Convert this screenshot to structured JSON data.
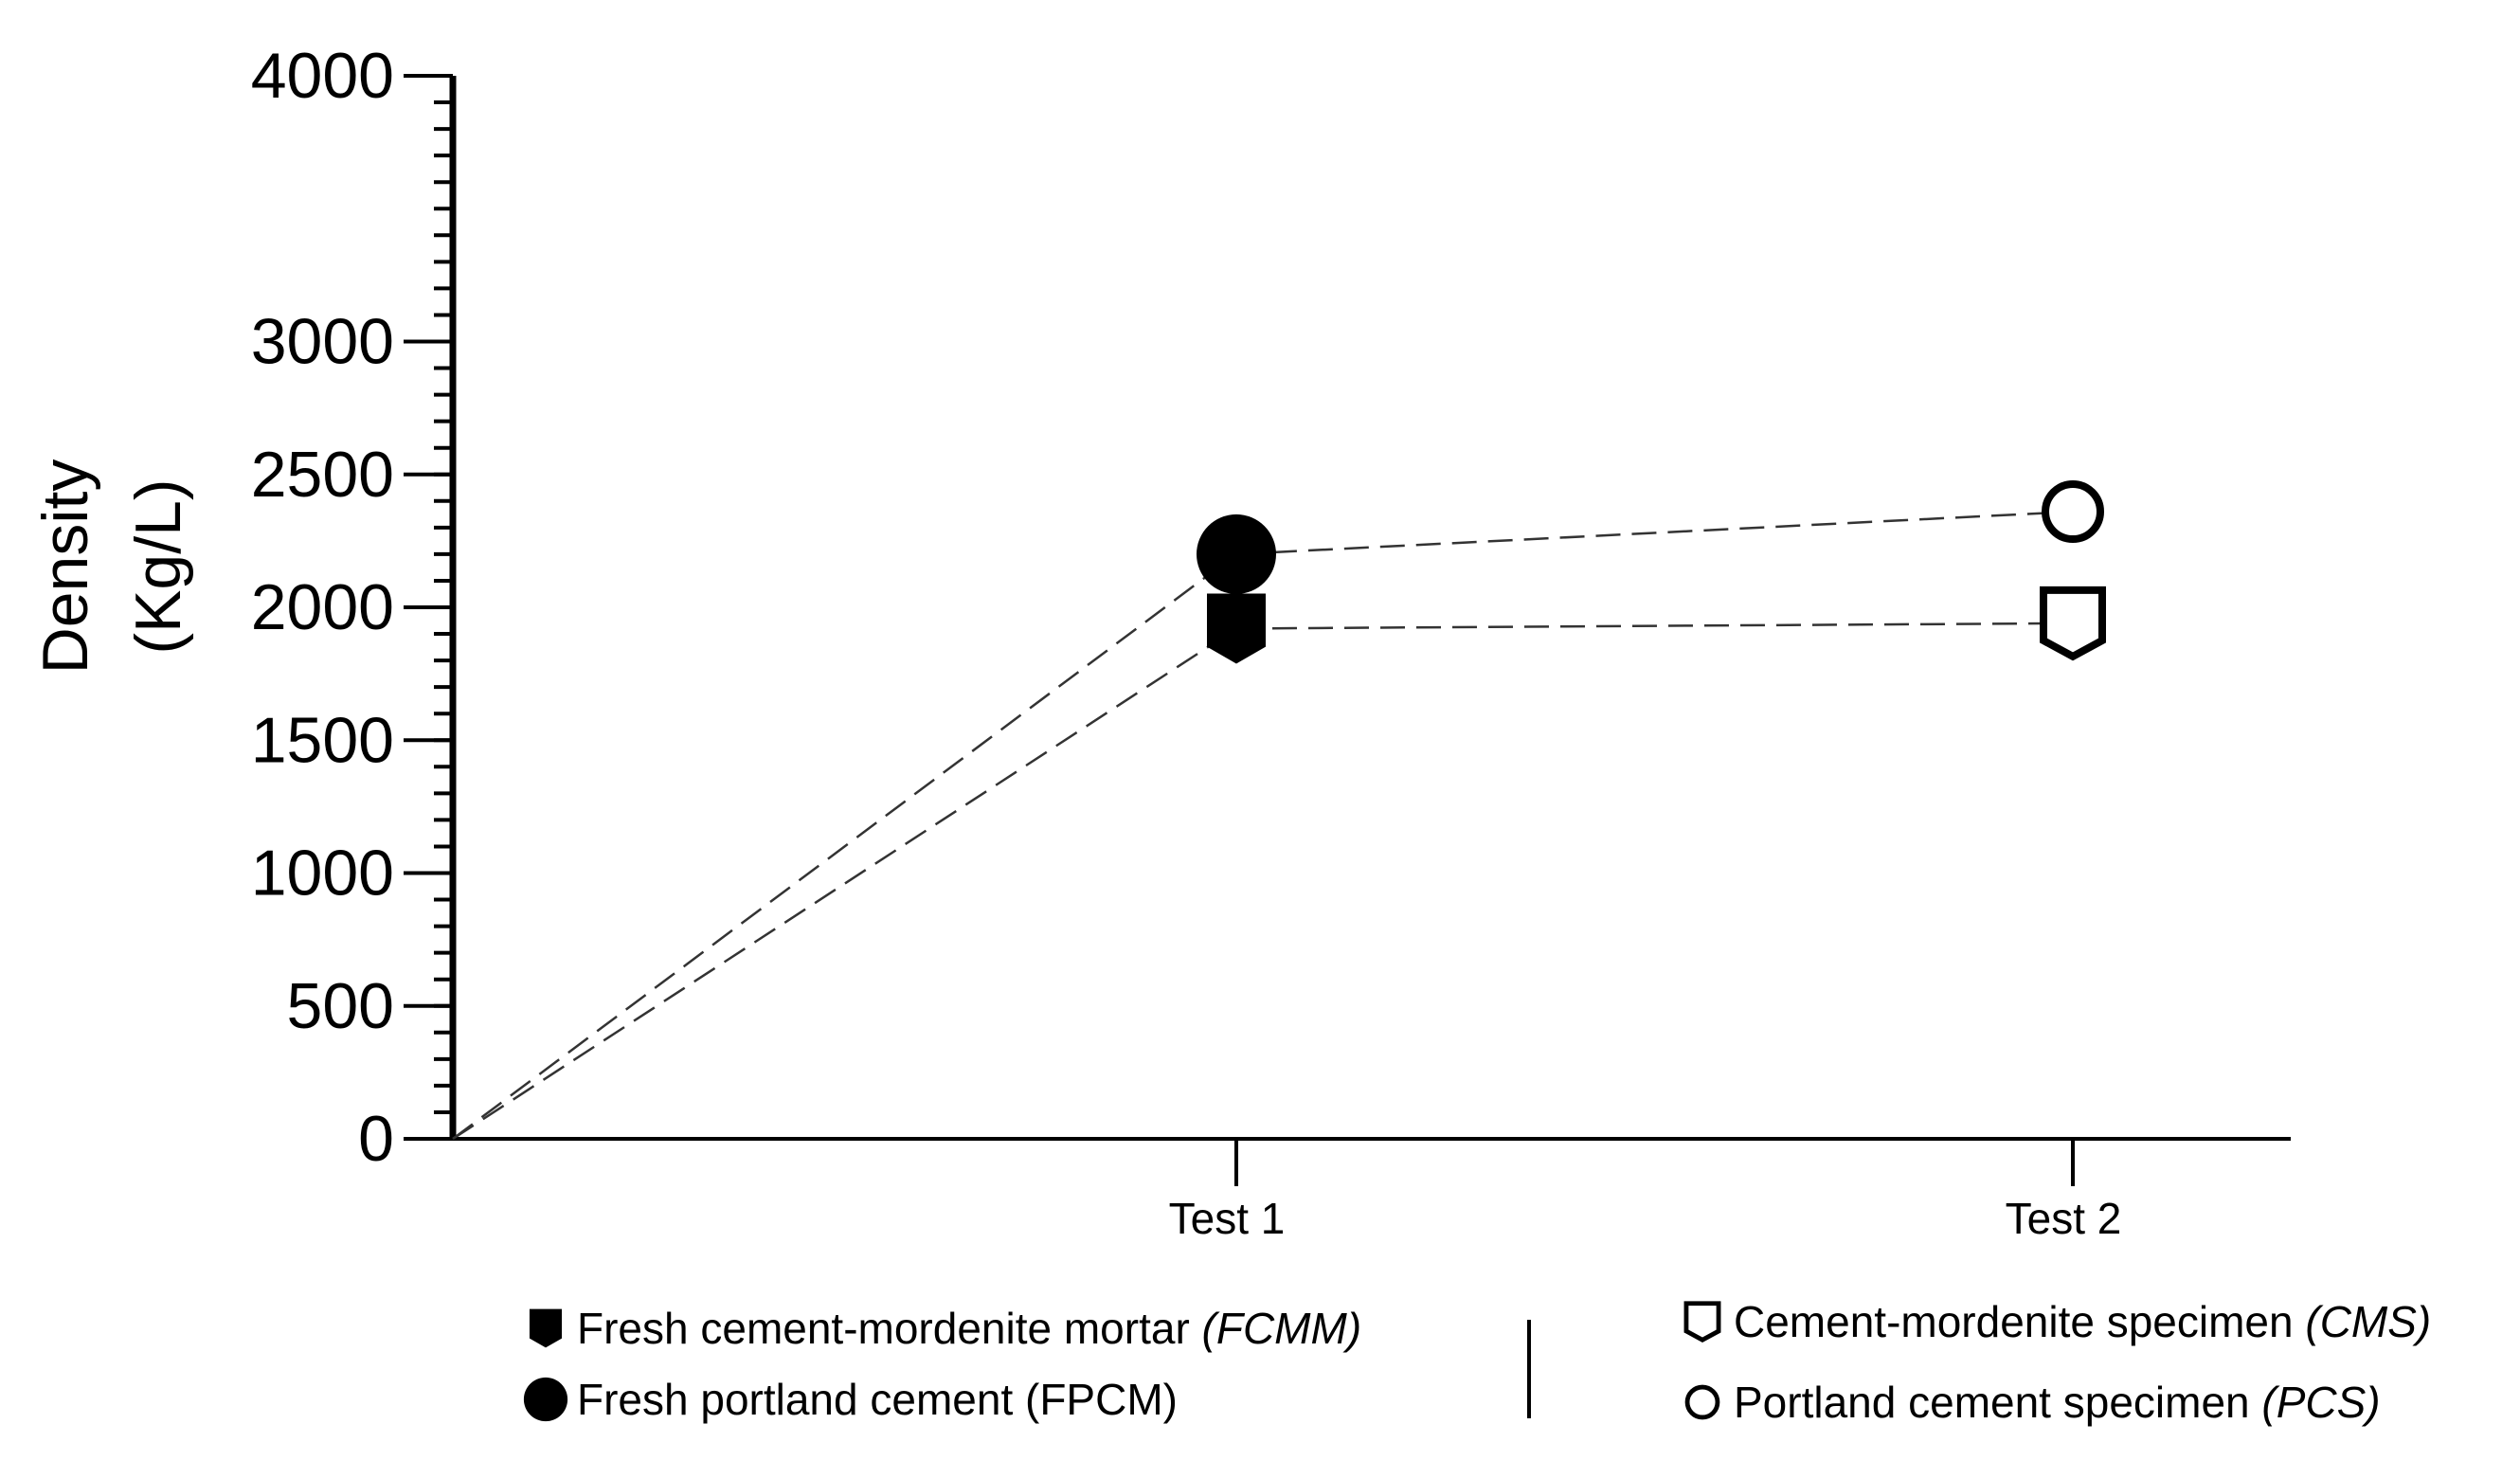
{
  "chart_data": {
    "type": "line",
    "ylabel_line1": "Density",
    "ylabel_line2": "(Kg/L)",
    "ylim": [
      0,
      4000
    ],
    "yticks": [
      0,
      500,
      1000,
      1500,
      2000,
      2500,
      3000,
      4000
    ],
    "categories": [
      "Test 1",
      "Test 2"
    ],
    "grid": false,
    "legend_position": "bottom",
    "series": [
      {
        "name": "Fresh cement-mordenite mortar",
        "abbr": "(FCMM)",
        "abbr_italic": true,
        "marker": "pentagon-filled",
        "category": "Test 1",
        "value": 1920
      },
      {
        "name": "Fresh portland cement",
        "abbr": "(FPCM)",
        "abbr_italic": false,
        "marker": "circle-filled",
        "category": "Test 1",
        "value": 2200
      },
      {
        "name": "Cement-mordenite specimen",
        "abbr": "(CMS)",
        "abbr_italic": true,
        "marker": "pentagon-open",
        "category": "Test 2",
        "value": 1940
      },
      {
        "name": "Portland cement specimen",
        "abbr": "(PCS)",
        "abbr_italic": true,
        "marker": "circle-open",
        "category": "Test 2",
        "value": 2360
      }
    ]
  }
}
